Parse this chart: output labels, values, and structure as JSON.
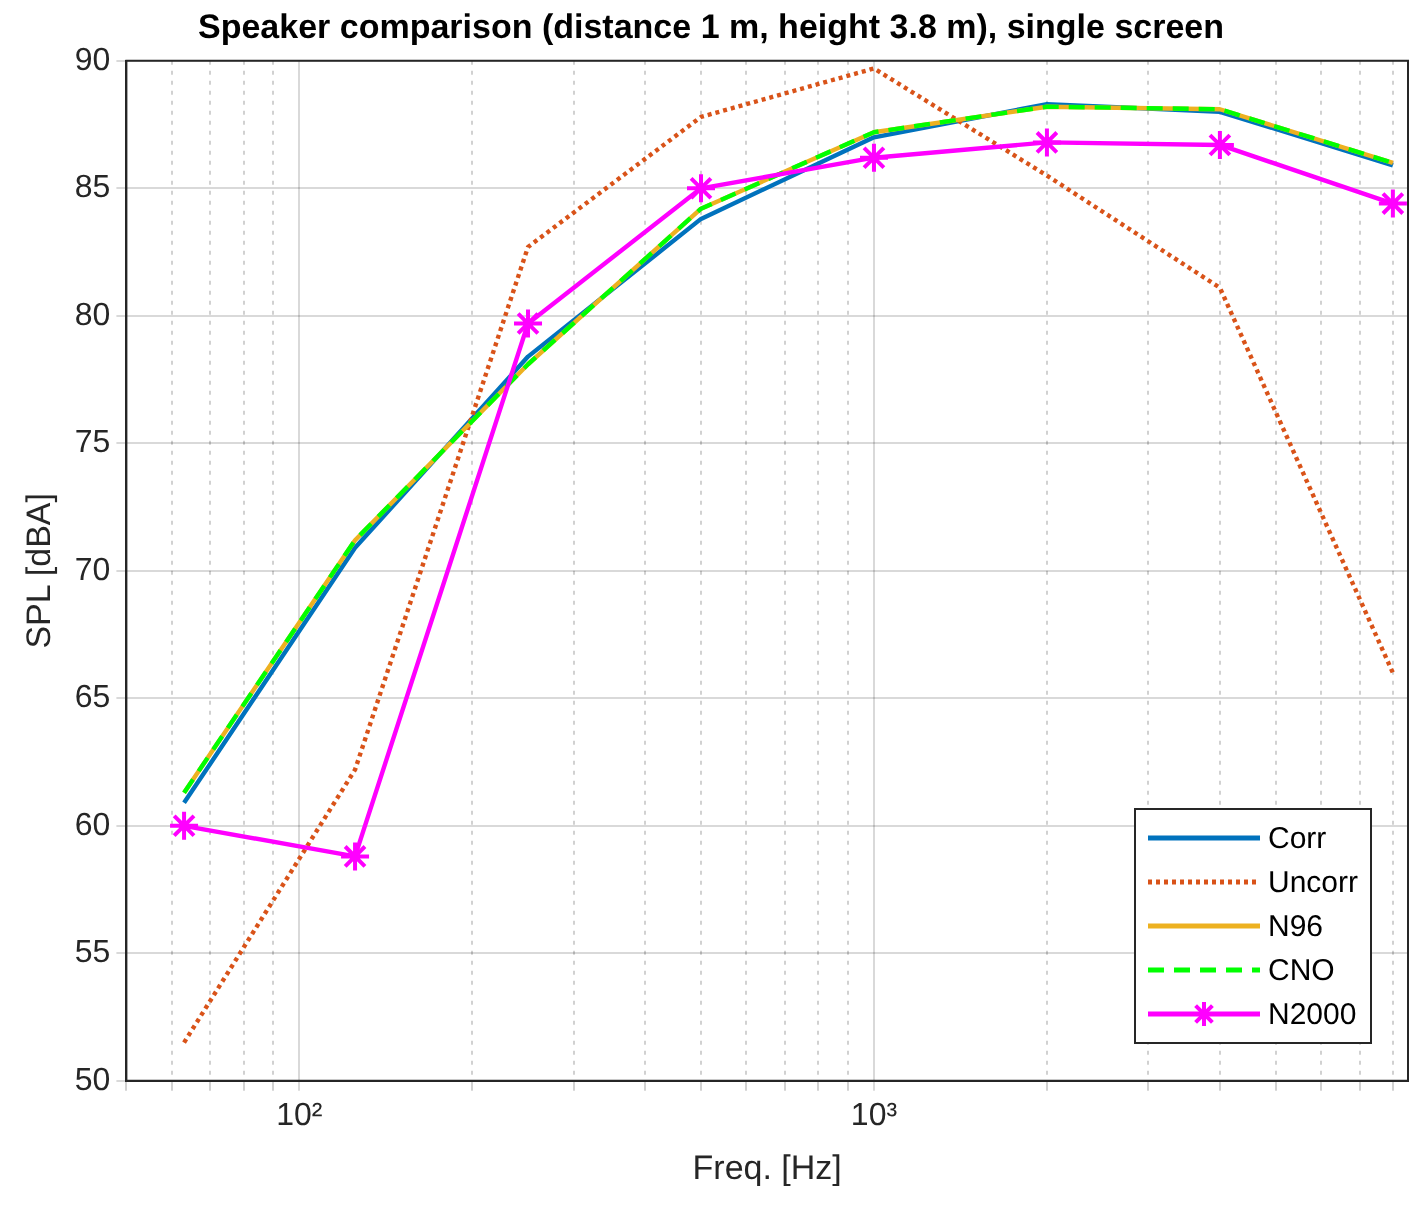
{
  "chart_data": {
    "type": "line",
    "title": "Speaker comparison (distance 1 m, height 3.8 m), single screen",
    "xlabel": "Freq. [Hz]",
    "ylabel": "SPL [dBA]",
    "x": [
      63,
      125,
      250,
      500,
      1000,
      2000,
      4000,
      8000
    ],
    "series": [
      {
        "name": "Corr",
        "color": "#0072bd",
        "line_style": "solid",
        "marker": "none",
        "values": [
          60.9,
          70.9,
          78.4,
          83.8,
          87.0,
          88.3,
          88.0,
          85.9
        ]
      },
      {
        "name": "Uncorr",
        "color": "#d95319",
        "line_style": "dotted",
        "marker": "none",
        "values": [
          51.5,
          62.2,
          82.7,
          87.8,
          89.7,
          85.5,
          81.1,
          66.0
        ]
      },
      {
        "name": "N96",
        "color": "#edb120",
        "line_style": "solid",
        "marker": "none",
        "values": [
          61.3,
          71.2,
          78.1,
          84.2,
          87.2,
          88.2,
          88.1,
          86.0
        ]
      },
      {
        "name": "CNO",
        "color": "#00ff00",
        "line_style": "dashed",
        "marker": "none",
        "values": [
          61.3,
          71.2,
          78.1,
          84.2,
          87.2,
          88.2,
          88.1,
          86.0
        ]
      },
      {
        "name": "N2000",
        "color": "#ff00ff",
        "line_style": "solid",
        "marker": "cross",
        "values": [
          60.0,
          58.8,
          79.7,
          85.0,
          86.2,
          86.8,
          86.7,
          84.4
        ]
      }
    ],
    "log": "x",
    "xlim": [
      50,
      8500
    ],
    "xticks": [
      {
        "value": 50,
        "label": null
      },
      {
        "value": 60,
        "label": null
      },
      {
        "value": 70,
        "label": null
      },
      {
        "value": 80,
        "label": null
      },
      {
        "value": 90,
        "label": null
      },
      {
        "value": 100,
        "label": "10²"
      },
      {
        "value": 200,
        "label": null
      },
      {
        "value": 300,
        "label": null
      },
      {
        "value": 400,
        "label": null
      },
      {
        "value": 500,
        "label": null
      },
      {
        "value": 600,
        "label": null
      },
      {
        "value": 700,
        "label": null
      },
      {
        "value": 800,
        "label": null
      },
      {
        "value": 900,
        "label": null
      },
      {
        "value": 1000,
        "label": "10³"
      },
      {
        "value": 2000,
        "label": null
      },
      {
        "value": 3000,
        "label": null
      },
      {
        "value": 4000,
        "label": null
      },
      {
        "value": 5000,
        "label": null
      },
      {
        "value": 6000,
        "label": null
      },
      {
        "value": 7000,
        "label": null
      },
      {
        "value": 8000,
        "label": null
      }
    ],
    "ylim": [
      50,
      90
    ],
    "yticks": [
      50,
      55,
      60,
      65,
      70,
      75,
      80,
      85,
      90
    ],
    "grid": true,
    "legend": "bottom right"
  }
}
